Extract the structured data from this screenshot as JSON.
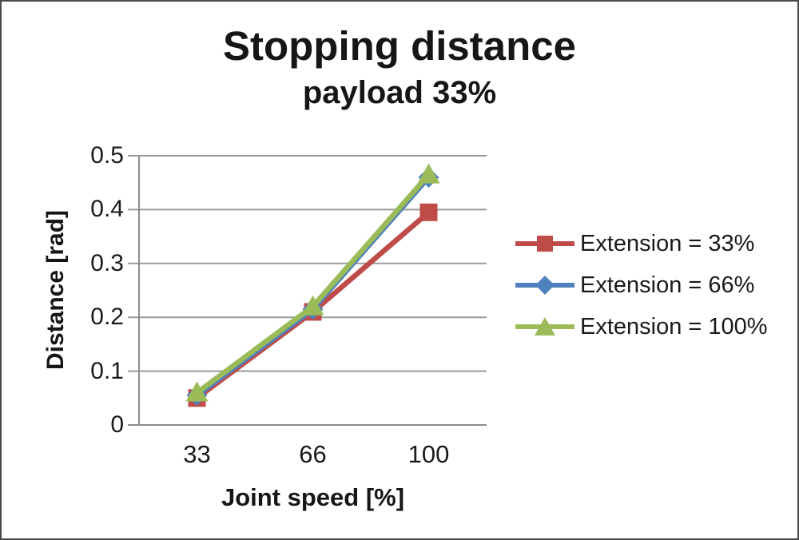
{
  "window": {
    "background": "#ffffff",
    "border_color": "#4a4a4a"
  },
  "chart_data": {
    "type": "line",
    "title": "Stopping distance",
    "subtitle": "payload 33%",
    "xlabel": "Joint speed [%]",
    "ylabel": "Distance [rad]",
    "categories": [
      "33",
      "66",
      "100"
    ],
    "x_values": [
      33,
      66,
      100
    ],
    "ylim": [
      0,
      0.5
    ],
    "yticks": [
      0,
      0.1,
      0.2,
      0.3,
      0.4,
      0.5
    ],
    "ytick_labels": [
      "0",
      "0.1",
      "0.2",
      "0.3",
      "0.4",
      "0.5"
    ],
    "grid": true,
    "legend_position": "right",
    "series": [
      {
        "name": "Extension = 33%",
        "marker": "square",
        "color": "#BE4B48",
        "values": [
          0.05,
          0.21,
          0.395
        ]
      },
      {
        "name": "Extension = 66%",
        "marker": "diamond",
        "color": "#4F81BD",
        "values": [
          0.055,
          0.215,
          0.46
        ]
      },
      {
        "name": "Extension = 100%",
        "marker": "triangle",
        "color": "#9BBB59",
        "values": [
          0.06,
          0.22,
          0.465
        ]
      }
    ],
    "colors": {
      "gridline": "#9a9a9a",
      "axis_line": "#8c8c8c",
      "text": "#161616"
    }
  }
}
